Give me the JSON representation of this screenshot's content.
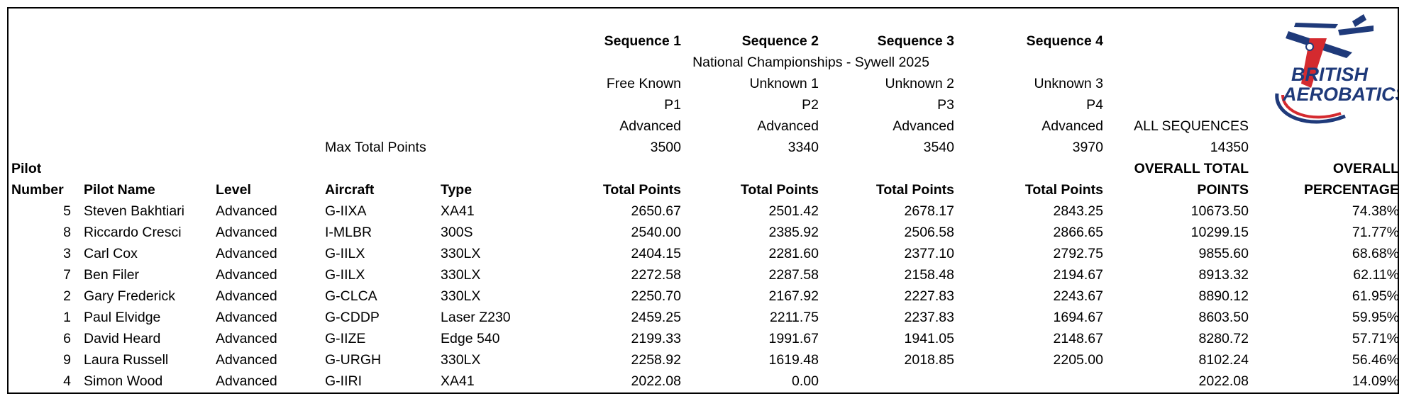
{
  "sequences": [
    {
      "label": "Sequence 1",
      "name": "Free Known",
      "program": "P1",
      "level": "Advanced",
      "max_points": "3500",
      "col_header": "Total Points"
    },
    {
      "label": "Sequence 2",
      "name": "Unknown 1",
      "program": "P2",
      "level": "Advanced",
      "max_points": "3340",
      "col_header": "Total Points"
    },
    {
      "label": "Sequence 3",
      "name": "Unknown 2",
      "program": "P3",
      "level": "Advanced",
      "max_points": "3540",
      "col_header": "Total Points"
    },
    {
      "label": "Sequence 4",
      "name": "Unknown 3",
      "program": "P4",
      "level": "Advanced",
      "max_points": "3970",
      "col_header": "Total Points"
    }
  ],
  "event_title": "National Championships - Sywell 2025",
  "max_total_label": "Max Total Points",
  "all_sequences": {
    "label": "ALL SEQUENCES",
    "max_points": "14350"
  },
  "headers": {
    "pilot_number": [
      "Pilot",
      "Number"
    ],
    "pilot_name": "Pilot Name",
    "level": "Level",
    "aircraft": "Aircraft",
    "type": "Type",
    "overall_total": [
      "OVERALL TOTAL",
      "POINTS"
    ],
    "overall_pct": [
      "OVERALL",
      "PERCENTAGE"
    ]
  },
  "logo": {
    "line1": "BRITISH",
    "line2": "AEROBATICS",
    "colors": {
      "blue": "#1f3a7a",
      "red": "#d42a2f"
    }
  },
  "rows": [
    {
      "num": "5",
      "name": "Steven Bakhtiari",
      "level": "Advanced",
      "aircraft": "G-IIXA",
      "type": "XA41",
      "s1": "2650.67",
      "s2": "2501.42",
      "s3": "2678.17",
      "s4": "2843.25",
      "total": "10673.50",
      "pct": "74.38%"
    },
    {
      "num": "8",
      "name": "Riccardo Cresci",
      "level": "Advanced",
      "aircraft": "I-MLBR",
      "type": "300S",
      "s1": "2540.00",
      "s2": "2385.92",
      "s3": "2506.58",
      "s4": "2866.65",
      "total": "10299.15",
      "pct": "71.77%"
    },
    {
      "num": "3",
      "name": "Carl Cox",
      "level": "Advanced",
      "aircraft": "G-IILX",
      "type": "330LX",
      "s1": "2404.15",
      "s2": "2281.60",
      "s3": "2377.10",
      "s4": "2792.75",
      "total": "9855.60",
      "pct": "68.68%"
    },
    {
      "num": "7",
      "name": "Ben Filer",
      "level": "Advanced",
      "aircraft": "G-IILX",
      "type": "330LX",
      "s1": "2272.58",
      "s2": "2287.58",
      "s3": "2158.48",
      "s4": "2194.67",
      "total": "8913.32",
      "pct": "62.11%"
    },
    {
      "num": "2",
      "name": "Gary Frederick",
      "level": "Advanced",
      "aircraft": "G-CLCA",
      "type": "330LX",
      "s1": "2250.70",
      "s2": "2167.92",
      "s3": "2227.83",
      "s4": "2243.67",
      "total": "8890.12",
      "pct": "61.95%"
    },
    {
      "num": "1",
      "name": "Paul Elvidge",
      "level": "Advanced",
      "aircraft": "G-CDDP",
      "type": "Laser Z230",
      "s1": "2459.25",
      "s2": "2211.75",
      "s3": "2237.83",
      "s4": "1694.67",
      "total": "8603.50",
      "pct": "59.95%"
    },
    {
      "num": "6",
      "name": "David Heard",
      "level": "Advanced",
      "aircraft": "G-IIZE",
      "type": "Edge 540",
      "s1": "2199.33",
      "s2": "1991.67",
      "s3": "1941.05",
      "s4": "2148.67",
      "total": "8280.72",
      "pct": "57.71%"
    },
    {
      "num": "9",
      "name": "Laura Russell",
      "level": "Advanced",
      "aircraft": "G-URGH",
      "type": "330LX",
      "s1": "2258.92",
      "s2": "1619.48",
      "s3": "2018.85",
      "s4": "2205.00",
      "total": "8102.24",
      "pct": "56.46%"
    },
    {
      "num": "4",
      "name": "Simon Wood",
      "level": "Advanced",
      "aircraft": "G-IIRI",
      "type": "XA41",
      "s1": "2022.08",
      "s2": "0.00",
      "s3": "",
      "s4": "",
      "total": "2022.08",
      "pct": "14.09%"
    }
  ]
}
